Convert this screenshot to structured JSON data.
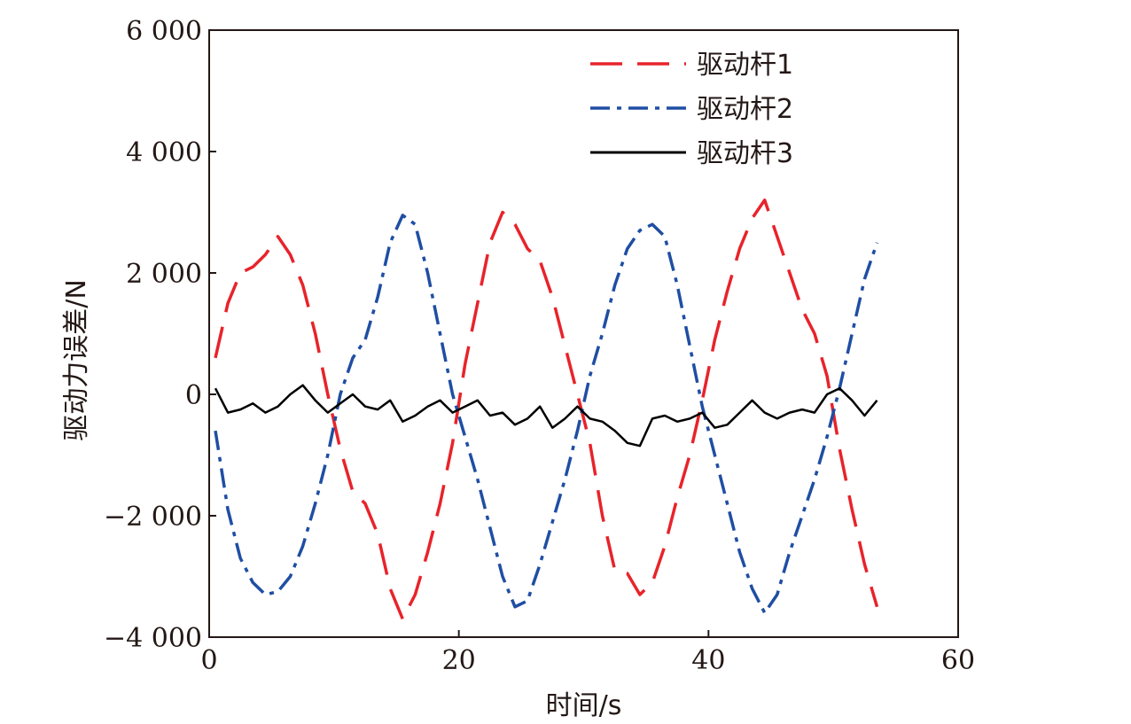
{
  "chart_data": {
    "type": "line",
    "xlabel": "时间/s",
    "ylabel": "驱动力误差/N",
    "xlim": [
      0,
      60
    ],
    "ylim": [
      -4000,
      6000
    ],
    "xticks": [
      0,
      20,
      40,
      60
    ],
    "xtick_labels": [
      "0",
      "20",
      "40",
      "60"
    ],
    "yticks": [
      -4000,
      -2000,
      0,
      2000,
      4000,
      6000
    ],
    "ytick_labels": [
      "−4 000",
      "−2 000",
      "0",
      "2 000",
      "4 000",
      "6 000"
    ],
    "grid": false,
    "legend_position": "top-right",
    "series": [
      {
        "name": "驱动杆1",
        "color": "#e8232a",
        "dash": "dashed",
        "x": [
          0.5,
          1.5,
          2.5,
          3.5,
          4.5,
          5.5,
          6.5,
          7.5,
          8.5,
          9.5,
          10.5,
          11.5,
          12.5,
          13.5,
          14.5,
          15.5,
          16.5,
          17.5,
          18.5,
          19.5,
          20.5,
          21.5,
          22.5,
          23.5,
          24.5,
          25.5,
          26.5,
          27.5,
          28.5,
          29.5,
          30.5,
          31.5,
          32.5,
          33.5,
          34.5,
          35.5,
          36.5,
          37.5,
          38.5,
          39.5,
          40.5,
          41.5,
          42.5,
          43.5,
          44.5,
          45.5,
          46.5,
          47.5,
          48.5,
          49.5,
          50.5,
          51.5,
          52.5,
          53.5
        ],
        "y": [
          600,
          1500,
          2000,
          2100,
          2300,
          2600,
          2300,
          1800,
          1000,
          0,
          -900,
          -1600,
          -1800,
          -2300,
          -3200,
          -3700,
          -3300,
          -2600,
          -1800,
          -800,
          500,
          1500,
          2500,
          3000,
          2800,
          2400,
          2200,
          1600,
          800,
          0,
          -800,
          -2000,
          -2900,
          -2950,
          -3300,
          -3100,
          -2500,
          -1700,
          -1000,
          -100,
          900,
          1700,
          2400,
          2900,
          3200,
          2600,
          2000,
          1400,
          1000,
          300,
          -900,
          -1900,
          -2800,
          -3500
        ]
      },
      {
        "name": "驱动杆2",
        "color": "#1f4ea3",
        "dash": "dash-dot",
        "x": [
          0.5,
          1.5,
          2.5,
          3.5,
          4.5,
          5.5,
          6.5,
          7.5,
          8.5,
          9.5,
          10.5,
          11.5,
          12.5,
          13.5,
          14.5,
          15.5,
          16.5,
          17.5,
          18.5,
          19.5,
          20.5,
          21.5,
          22.5,
          23.5,
          24.5,
          25.5,
          26.5,
          27.5,
          28.5,
          29.5,
          30.5,
          31.5,
          32.5,
          33.5,
          34.5,
          35.5,
          36.5,
          37.5,
          38.5,
          39.5,
          40.5,
          41.5,
          42.5,
          43.5,
          44.5,
          45.5,
          46.5,
          47.5,
          48.5,
          49.5,
          50.5,
          51.5,
          52.5,
          53.5
        ],
        "y": [
          -600,
          -1900,
          -2700,
          -3100,
          -3300,
          -3250,
          -3000,
          -2500,
          -1800,
          -1000,
          0,
          600,
          900,
          1600,
          2500,
          2950,
          2800,
          2000,
          1000,
          0,
          -700,
          -1400,
          -2200,
          -3000,
          -3500,
          -3400,
          -2800,
          -2100,
          -1400,
          -600,
          300,
          1000,
          1800,
          2400,
          2700,
          2800,
          2600,
          1800,
          800,
          -200,
          -1000,
          -1800,
          -2600,
          -3200,
          -3600,
          -3300,
          -2600,
          -2000,
          -1400,
          -700,
          100,
          1000,
          1900,
          2500
        ]
      },
      {
        "name": "驱动杆3",
        "color": "#000000",
        "dash": "solid",
        "x": [
          0.5,
          1.5,
          2.5,
          3.5,
          4.5,
          5.5,
          6.5,
          7.5,
          8.5,
          9.5,
          10.5,
          11.5,
          12.5,
          13.5,
          14.5,
          15.5,
          16.5,
          17.5,
          18.5,
          19.5,
          20.5,
          21.5,
          22.5,
          23.5,
          24.5,
          25.5,
          26.5,
          27.5,
          28.5,
          29.5,
          30.5,
          31.5,
          32.5,
          33.5,
          34.5,
          35.5,
          36.5,
          37.5,
          38.5,
          39.5,
          40.5,
          41.5,
          42.5,
          43.5,
          44.5,
          45.5,
          46.5,
          47.5,
          48.5,
          49.5,
          50.5,
          51.5,
          52.5,
          53.5
        ],
        "y": [
          100,
          -300,
          -250,
          -150,
          -300,
          -200,
          0,
          150,
          -100,
          -300,
          -150,
          0,
          -200,
          -250,
          -100,
          -450,
          -350,
          -200,
          -100,
          -300,
          -200,
          -100,
          -350,
          -300,
          -500,
          -400,
          -200,
          -550,
          -400,
          -200,
          -400,
          -450,
          -600,
          -800,
          -850,
          -400,
          -350,
          -450,
          -400,
          -300,
          -550,
          -500,
          -300,
          -100,
          -300,
          -400,
          -300,
          -250,
          -300,
          0,
          100,
          -100,
          -350,
          -100
        ]
      }
    ]
  }
}
